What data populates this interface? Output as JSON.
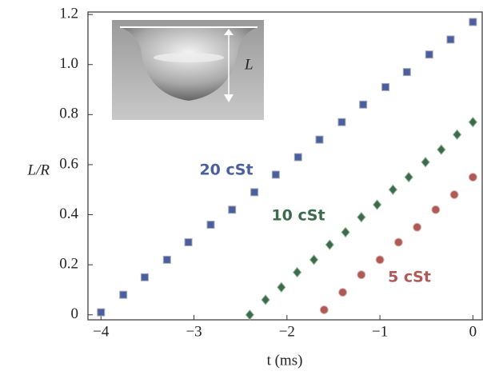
{
  "chart_data": {
    "type": "scatter",
    "x_label": "t (ms)",
    "y_label": "L/R",
    "inset_label": "L",
    "xlim": [
      -4.14,
      0.1
    ],
    "ylim": [
      -0.02,
      1.21
    ],
    "xticks": [
      {
        "value": -4,
        "label": "−4"
      },
      {
        "value": -3,
        "label": "−3"
      },
      {
        "value": -2,
        "label": "−2"
      },
      {
        "value": -1,
        "label": "−1"
      },
      0
    ],
    "yticks": [
      0,
      0.2,
      0.4,
      0.6,
      0.8,
      {
        "value": 1.0,
        "label": "1.0"
      },
      1.2
    ],
    "series": [
      {
        "name": "20 cSt",
        "color": "#4a5f9e",
        "marker": "square",
        "x": [
          -4,
          -3.76,
          -3.53,
          -3.29,
          -3.06,
          -2.82,
          -2.59,
          -2.35,
          -2.12,
          -1.88,
          -1.65,
          -1.41,
          -1.18,
          -0.94,
          -0.71,
          -0.47,
          -0.24,
          0
        ],
        "values": [
          0.01,
          0.08,
          0.15,
          0.22,
          0.29,
          0.36,
          0.42,
          0.49,
          0.56,
          0.63,
          0.7,
          0.77,
          0.84,
          0.91,
          0.97,
          1.04,
          1.1,
          1.17
        ]
      },
      {
        "name": "10 cSt",
        "color": "#3c6a4c",
        "marker": "diamond",
        "x": [
          -2.4,
          -2.23,
          -2.06,
          -1.89,
          -1.71,
          -1.54,
          -1.37,
          -1.2,
          -1.03,
          -0.86,
          -0.69,
          -0.51,
          -0.34,
          -0.17,
          0
        ],
        "values": [
          0,
          0.06,
          0.11,
          0.17,
          0.22,
          0.28,
          0.33,
          0.39,
          0.44,
          0.5,
          0.55,
          0.61,
          0.66,
          0.72,
          0.77
        ]
      },
      {
        "name": "5 cSt",
        "color": "#b05a55",
        "marker": "circle",
        "x": [
          -1.6,
          -1.4,
          -1.2,
          -1.0,
          -0.8,
          -0.6,
          -0.4,
          -0.2,
          0
        ],
        "values": [
          0.02,
          0.09,
          0.16,
          0.22,
          0.29,
          0.35,
          0.42,
          0.48,
          0.55
        ]
      }
    ]
  }
}
